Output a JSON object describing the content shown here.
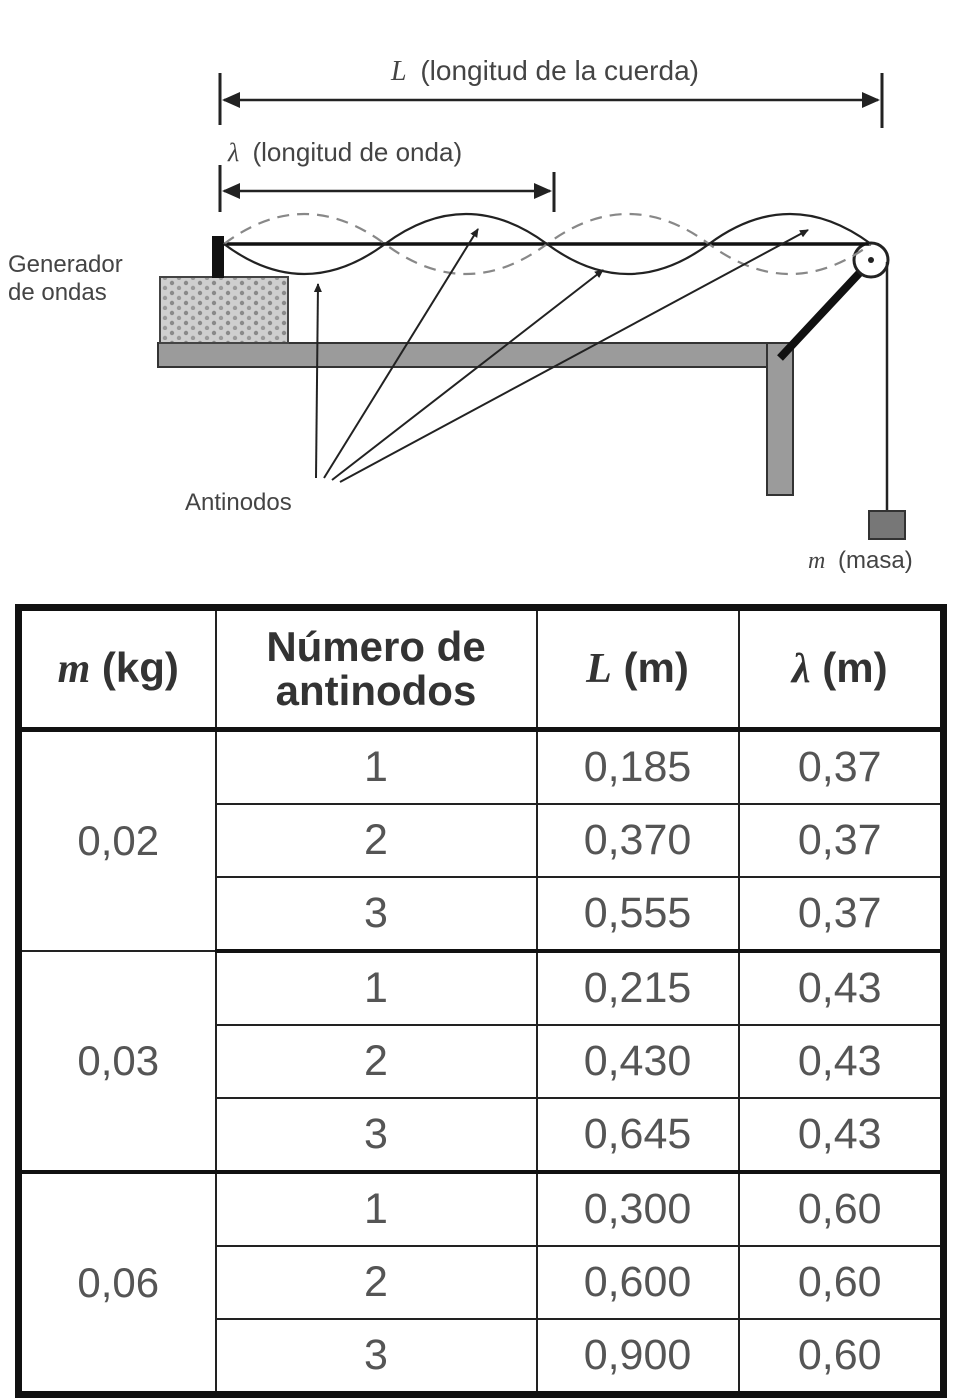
{
  "diagram": {
    "L_symbol": "L",
    "L_text": "(longitud de la cuerda)",
    "lambda_symbol": "λ",
    "lambda_text": "(longitud de onda)",
    "generator_line1": "Generador",
    "generator_line2": "de ondas",
    "antinodes_label": "Antinodos",
    "mass_symbol": "m",
    "mass_text": "(masa)"
  },
  "table": {
    "headers": {
      "m_symbol": "m",
      "m_unit": "(kg)",
      "antinodes_line1": "Número de",
      "antinodes_line2": "antinodos",
      "L_symbol": "L",
      "L_unit": "(m)",
      "lambda_symbol": "λ",
      "lambda_unit": "(m)"
    },
    "groups": [
      {
        "mass": "0,02",
        "rows": [
          {
            "n": "1",
            "L": "0,185",
            "lambda": "0,37"
          },
          {
            "n": "2",
            "L": "0,370",
            "lambda": "0,37"
          },
          {
            "n": "3",
            "L": "0,555",
            "lambda": "0,37"
          }
        ]
      },
      {
        "mass": "0,03",
        "rows": [
          {
            "n": "1",
            "L": "0,215",
            "lambda": "0,43"
          },
          {
            "n": "2",
            "L": "0,430",
            "lambda": "0,43"
          },
          {
            "n": "3",
            "L": "0,645",
            "lambda": "0,43"
          }
        ]
      },
      {
        "mass": "0,06",
        "rows": [
          {
            "n": "1",
            "L": "0,300",
            "lambda": "0,60"
          },
          {
            "n": "2",
            "L": "0,600",
            "lambda": "0,60"
          },
          {
            "n": "3",
            "L": "0,900",
            "lambda": "0,60"
          }
        ]
      }
    ]
  }
}
